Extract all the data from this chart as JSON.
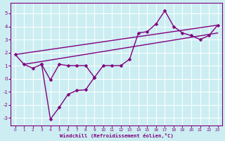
{
  "xlabel": "Windchill (Refroidissement éolien,°C)",
  "background_color": "#cceef2",
  "grid_color": "#ffffff",
  "line_color": "#800080",
  "xlim": [
    -0.5,
    23.5
  ],
  "ylim": [
    -3.6,
    5.8
  ],
  "xticks": [
    0,
    1,
    2,
    3,
    4,
    5,
    6,
    7,
    8,
    9,
    10,
    11,
    12,
    13,
    14,
    15,
    16,
    17,
    18,
    19,
    20,
    21,
    22,
    23
  ],
  "yticks": [
    -3,
    -2,
    -1,
    0,
    1,
    2,
    3,
    4,
    5
  ],
  "straight_line1": {
    "x": [
      0,
      23
    ],
    "y": [
      1.85,
      4.1
    ]
  },
  "straight_line2": {
    "x": [
      1,
      23
    ],
    "y": [
      1.1,
      3.5
    ]
  },
  "zigzag_line": {
    "x": [
      0,
      1,
      2,
      3,
      4,
      5,
      6,
      7,
      8,
      9,
      10,
      11,
      12,
      13,
      14,
      15,
      16,
      17,
      18,
      19,
      20,
      21,
      22,
      23
    ],
    "y": [
      1.85,
      1.1,
      0.8,
      1.1,
      -0.1,
      1.1,
      1.0,
      1.0,
      1.0,
      0.1,
      1.0,
      1.0,
      1.0,
      1.5,
      3.5,
      3.6,
      4.2,
      5.2,
      4.0,
      3.5,
      3.3,
      3.0,
      3.3,
      4.1
    ]
  },
  "dip_line": {
    "x": [
      3,
      4,
      5,
      6,
      7,
      8,
      9
    ],
    "y": [
      1.1,
      -3.1,
      -2.2,
      -1.2,
      -0.9,
      -0.85,
      0.1
    ]
  },
  "marker_size": 2.5,
  "line_width": 1.0
}
